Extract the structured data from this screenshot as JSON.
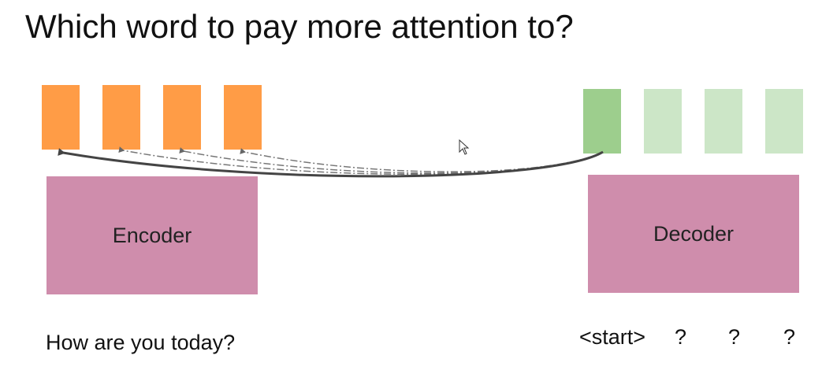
{
  "title": "Which word to pay more attention to?",
  "encoder": {
    "label": "Encoder",
    "input_sentence": "How are you today?",
    "state_color": "#ff9c46",
    "block_color": "#cf8dac"
  },
  "decoder": {
    "label": "Decoder",
    "tokens": [
      "<start>",
      "?",
      "?",
      "?"
    ],
    "active_state_color": "#9dce8d",
    "pending_state_color": "#cce6c7"
  },
  "attention": {
    "primary_arrow_style": "solid",
    "secondary_arrow_style": "dash-dot"
  }
}
